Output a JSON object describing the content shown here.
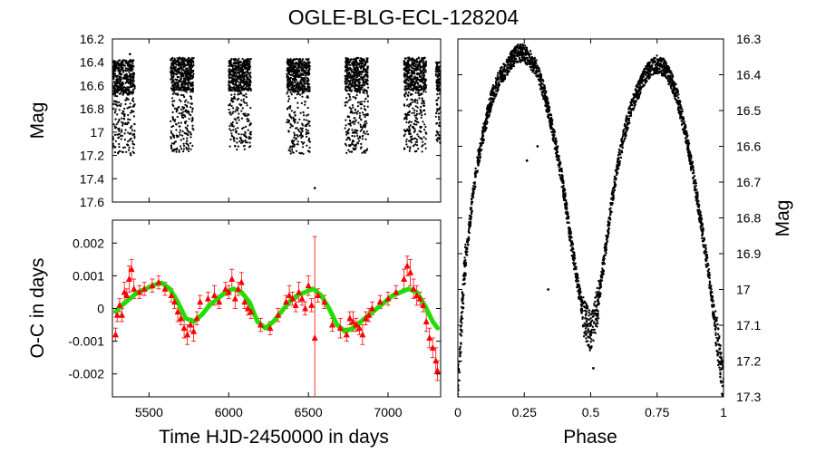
{
  "figure": {
    "title": "OGLE-BLG-ECL-128204"
  },
  "chart_data": [
    {
      "type": "scatter",
      "panel": "light-curve-vs-time",
      "ylabel": "Mag",
      "xlim": [
        5270,
        7330
      ],
      "ylim": [
        17.6,
        16.2
      ],
      "y_inverted": true,
      "yticks": [
        16.2,
        16.4,
        16.6,
        16.8,
        17.0,
        17.2,
        17.4,
        17.6
      ],
      "ytick_labels": [
        "16.2",
        "16.4",
        "16.6",
        "16.8",
        "17",
        "17.2",
        "17.4",
        "17.6"
      ],
      "seasons": [
        {
          "x_start": 5270,
          "x_end": 5410,
          "mag_min": 16.38,
          "mag_max": 17.2
        },
        {
          "x_start": 5635,
          "x_end": 5780,
          "mag_min": 16.36,
          "mag_max": 17.17
        },
        {
          "x_start": 6000,
          "x_end": 6140,
          "mag_min": 16.37,
          "mag_max": 17.15
        },
        {
          "x_start": 6365,
          "x_end": 6510,
          "mag_min": 16.37,
          "mag_max": 17.19
        },
        {
          "x_start": 6730,
          "x_end": 6875,
          "mag_min": 16.36,
          "mag_max": 17.18
        },
        {
          "x_start": 7100,
          "x_end": 7240,
          "mag_min": 16.36,
          "mag_max": 17.17
        },
        {
          "x_start": 7300,
          "x_end": 7330,
          "mag_min": 16.4,
          "mag_max": 17.1
        }
      ],
      "outliers": [
        {
          "x": 6540,
          "y": 17.48
        },
        {
          "x": 5380,
          "y": 16.33
        }
      ],
      "color": "#000000"
    },
    {
      "type": "scatter",
      "panel": "o-c-diagram",
      "xlabel": "Time HJD-2450000 in days",
      "ylabel": "O-C in days",
      "xlim": [
        5270,
        7330
      ],
      "ylim": [
        -0.0027,
        0.0027
      ],
      "xticks": [
        5500,
        6000,
        6500,
        7000
      ],
      "xtick_labels": [
        "5500",
        "6000",
        "6500",
        "7000"
      ],
      "yticks": [
        0.002,
        0.001,
        0,
        -0.001,
        -0.002
      ],
      "ytick_labels": [
        "0.002",
        "0.001",
        "0",
        "-0.001",
        "-0.002"
      ],
      "model": {
        "x": [
          5290,
          5330,
          5380,
          5430,
          5480,
          5530,
          5580,
          5630,
          5680,
          5730,
          5780,
          5830,
          5880,
          5930,
          5980,
          6030,
          6080,
          6130,
          6180,
          6230,
          6280,
          6330,
          6380,
          6430,
          6480,
          6530,
          6580,
          6630,
          6680,
          6730,
          6780,
          6830,
          6880,
          6930,
          6980,
          7030,
          7080,
          7130,
          7180,
          7230,
          7280,
          7310
        ],
        "y": [
          -0.0001,
          0.0001,
          0.0003,
          0.0005,
          0.0006,
          0.00072,
          0.00078,
          0.0006,
          0.0002,
          -0.0003,
          -0.0004,
          -0.0002,
          0.0001,
          0.0003,
          0.0005,
          0.0006,
          0.0005,
          0.0002,
          -0.0004,
          -0.0006,
          -0.0004,
          -0.0001,
          0.0002,
          0.0004,
          0.0005,
          0.0006,
          0.0004,
          0.0,
          -0.0005,
          -0.0007,
          -0.0006,
          -0.0004,
          -0.0002,
          0.0,
          0.0002,
          0.0004,
          0.0005,
          0.0006,
          0.0005,
          0.0001,
          -0.0004,
          -0.0006
        ],
        "color": "#22dd00"
      },
      "points": {
        "x": [
          5290,
          5300,
          5315,
          5330,
          5345,
          5360,
          5375,
          5390,
          5405,
          5440,
          5470,
          5520,
          5560,
          5600,
          5640,
          5660,
          5680,
          5700,
          5720,
          5740,
          5760,
          5780,
          5800,
          5820,
          5870,
          5910,
          5940,
          5980,
          6000,
          6020,
          6040,
          6060,
          6080,
          6100,
          6120,
          6140,
          6200,
          6260,
          6310,
          6360,
          6380,
          6400,
          6420,
          6440,
          6460,
          6480,
          6500,
          6520,
          6540,
          6560,
          6600,
          6650,
          6700,
          6740,
          6760,
          6780,
          6800,
          6820,
          6840,
          6860,
          6880,
          6900,
          6950,
          7000,
          7050,
          7100,
          7120,
          7140,
          7160,
          7180,
          7200,
          7220,
          7240,
          7260,
          7280,
          7300,
          7310
        ],
        "y": [
          -0.0008,
          -0.0002,
          0.0001,
          -0.0002,
          0.0005,
          0.0004,
          0.0009,
          0.0012,
          0.0006,
          0.0005,
          0.0006,
          0.0007,
          0.0008,
          0.0006,
          0.0004,
          0.0002,
          -0.0001,
          -0.0003,
          -0.0006,
          -0.0008,
          -0.0005,
          -0.0007,
          -0.0003,
          0.0002,
          0.0003,
          0.0004,
          0.0002,
          0.0006,
          0.0005,
          0.0009,
          0.0003,
          0.0006,
          0.0008,
          0.0002,
          0.0,
          -0.0001,
          -0.0005,
          -0.0006,
          -0.0002,
          0.0002,
          0.0004,
          0.0003,
          0.0001,
          0.0005,
          0.0003,
          0.0,
          0.0007,
          0.0001,
          -0.0009,
          0.0004,
          0.0002,
          -0.0005,
          -0.0006,
          -0.0008,
          -0.0003,
          -0.0004,
          -0.0005,
          -0.0006,
          -0.0008,
          -0.0003,
          -0.0002,
          0.0,
          0.0002,
          0.0003,
          0.0005,
          0.0009,
          0.0013,
          0.0011,
          0.0006,
          0.0004,
          0.0003,
          0.0001,
          -0.0004,
          -0.0009,
          -0.0012,
          -0.0016,
          -0.0019
        ],
        "err": [
          0.0002,
          0.0002,
          0.0002,
          0.0002,
          0.0003,
          0.0002,
          0.0004,
          0.0003,
          0.0003,
          0.0002,
          0.0002,
          0.0002,
          0.0002,
          0.0002,
          0.0002,
          0.0002,
          0.0003,
          0.0002,
          0.0003,
          0.0003,
          0.0002,
          0.0003,
          0.0002,
          0.0002,
          0.0002,
          0.0003,
          0.0002,
          0.0002,
          0.0002,
          0.0003,
          0.0003,
          0.0002,
          0.0003,
          0.0002,
          0.0002,
          0.0002,
          0.0002,
          0.0002,
          0.0002,
          0.0002,
          0.0003,
          0.0002,
          0.0002,
          0.0003,
          0.0002,
          0.0002,
          0.0003,
          0.0002,
          0.0031,
          0.0002,
          0.0002,
          0.0002,
          0.0003,
          0.0002,
          0.0002,
          0.0003,
          0.0002,
          0.0002,
          0.0003,
          0.0002,
          0.0002,
          0.0002,
          0.0002,
          0.0002,
          0.0002,
          0.0003,
          0.0003,
          0.0004,
          0.0003,
          0.0003,
          0.0002,
          0.0002,
          0.0003,
          0.0003,
          0.0003,
          0.0004,
          0.0003
        ],
        "color": "#ff0000",
        "marker": "triangle"
      }
    },
    {
      "type": "scatter",
      "panel": "phased-light-curve",
      "xlabel": "Phase",
      "ylabel": "Mag",
      "xlim": [
        0,
        1
      ],
      "ylim": [
        17.3,
        16.3
      ],
      "y_inverted": true,
      "xticks": [
        0,
        0.25,
        0.5,
        0.75,
        1
      ],
      "xtick_labels": [
        "0",
        "0.25",
        "0.5",
        "0.75",
        "1"
      ],
      "yticks": [
        16.3,
        16.4,
        16.5,
        16.6,
        16.7,
        16.8,
        16.9,
        17.0,
        17.1,
        17.2,
        17.3
      ],
      "ytick_labels": [
        "16.3",
        "16.4",
        "16.5",
        "16.6",
        "16.7",
        "16.8",
        "16.9",
        "17",
        "17.1",
        "17.2",
        "17.3"
      ],
      "curve_phase": [
        0,
        0.025,
        0.05,
        0.075,
        0.1,
        0.125,
        0.15,
        0.175,
        0.2,
        0.225,
        0.25,
        0.275,
        0.3,
        0.325,
        0.35,
        0.375,
        0.4,
        0.425,
        0.45,
        0.475,
        0.5,
        0.525,
        0.55,
        0.575,
        0.6,
        0.625,
        0.65,
        0.675,
        0.7,
        0.725,
        0.75,
        0.775,
        0.8,
        0.825,
        0.85,
        0.875,
        0.9,
        0.925,
        0.95,
        0.975,
        1
      ],
      "curve_mag": [
        17.27,
        16.95,
        16.78,
        16.64,
        16.55,
        16.47,
        16.42,
        16.39,
        16.36,
        16.34,
        16.34,
        16.36,
        16.39,
        16.45,
        16.53,
        16.62,
        16.73,
        16.86,
        16.98,
        17.08,
        17.12,
        17.05,
        16.92,
        16.78,
        16.66,
        16.57,
        16.5,
        16.45,
        16.41,
        16.38,
        16.37,
        16.38,
        16.41,
        16.46,
        16.54,
        16.63,
        16.74,
        16.86,
        16.99,
        17.13,
        17.27
      ],
      "band_width_mag": 0.025,
      "outliers": [
        {
          "x": 0.26,
          "y": 16.64
        },
        {
          "x": 0.3,
          "y": 16.6
        },
        {
          "x": 0.34,
          "y": 17.0
        },
        {
          "x": 0.51,
          "y": 17.22
        }
      ],
      "color": "#000000"
    }
  ]
}
